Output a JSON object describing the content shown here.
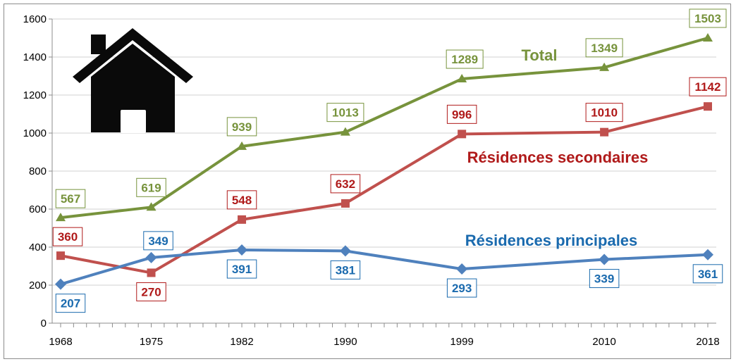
{
  "chart_data": {
    "type": "line",
    "x": [
      "1968",
      "1975",
      "1982",
      "1990",
      "1999",
      "2010",
      "2018"
    ],
    "x_years": [
      1968,
      1975,
      1982,
      1990,
      1999,
      2010,
      2018
    ],
    "ylim": [
      0,
      1600
    ],
    "yticks": [
      0,
      200,
      400,
      600,
      800,
      1000,
      1200,
      1400,
      1600
    ],
    "grid": true,
    "series": [
      {
        "name": "Total",
        "color": "#77933c",
        "marker": "triangle",
        "values": [
          555,
          610,
          930,
          1005,
          1285,
          1345,
          1500
        ],
        "labels": [
          "567",
          "619",
          "939",
          "1013",
          "1289",
          "1349",
          "1503"
        ]
      },
      {
        "name": "Résidences secondaires",
        "color": "#c0504d",
        "label_color": "#b01a1a",
        "marker": "square",
        "values": [
          355,
          265,
          545,
          630,
          995,
          1005,
          1140
        ],
        "labels": [
          "360",
          "270",
          "548",
          "632",
          "996",
          "1010",
          "1142"
        ]
      },
      {
        "name": "Résidences principales",
        "color": "#4f81bd",
        "label_color": "#1a6aae",
        "marker": "diamond",
        "values": [
          205,
          345,
          385,
          380,
          285,
          335,
          360
        ],
        "labels": [
          "207",
          "349",
          "391",
          "381",
          "293",
          "339",
          "361"
        ]
      }
    ],
    "icon": "house-icon"
  }
}
